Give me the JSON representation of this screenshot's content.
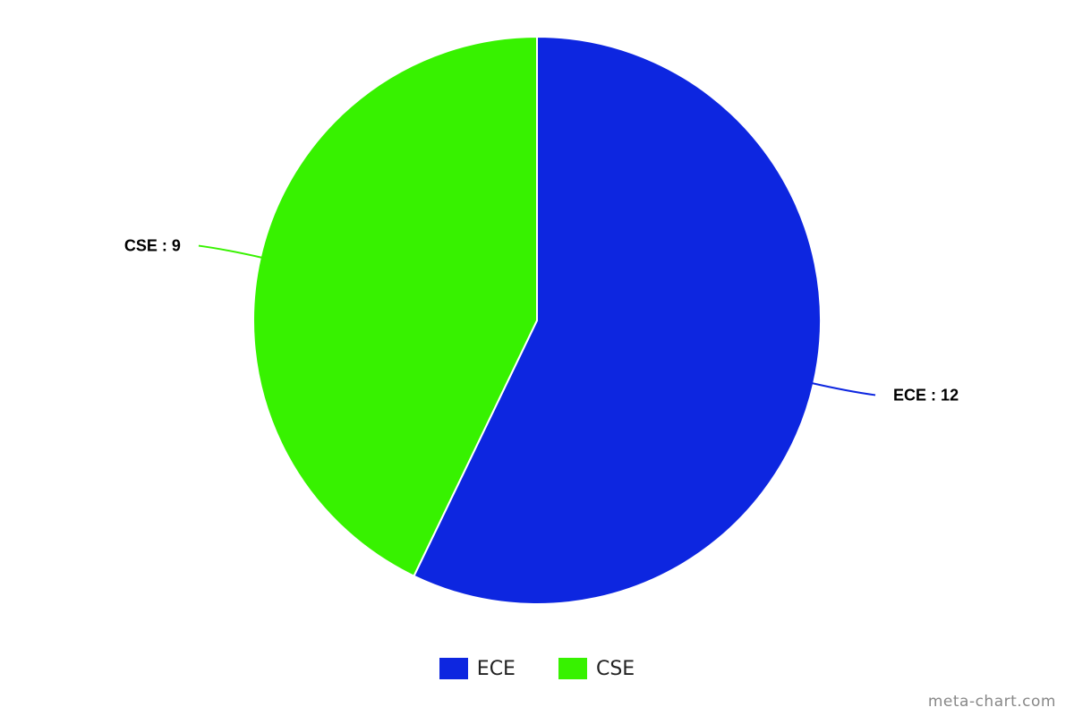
{
  "chart_data": {
    "type": "pie",
    "categories": [
      "ECE",
      "CSE"
    ],
    "values": [
      12,
      9
    ],
    "colors": [
      "#0d26e0",
      "#37f200"
    ],
    "slice_labels": [
      "ECE : 12",
      "CSE : 9"
    ],
    "start_angle_deg": 0,
    "direction": "clockwise",
    "legend_position": "bottom-center"
  },
  "legend": {
    "items": [
      {
        "label": "ECE",
        "color": "#0d26e0"
      },
      {
        "label": "CSE",
        "color": "#37f200"
      }
    ]
  },
  "watermark": "meta-chart.com"
}
